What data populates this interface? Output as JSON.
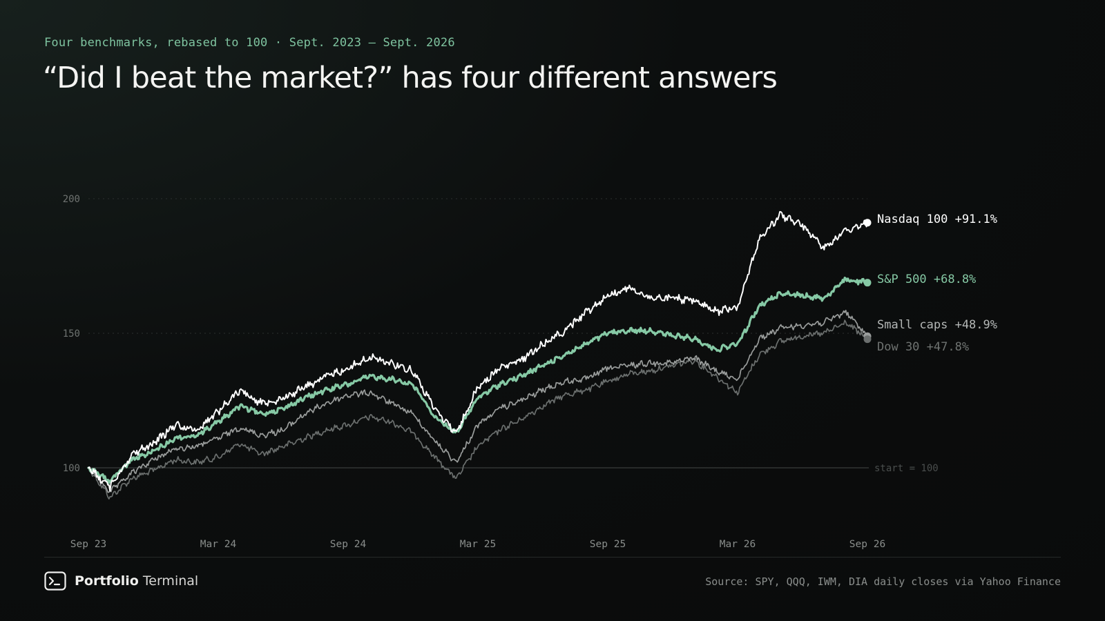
{
  "header": {
    "kicker": "Four benchmarks, rebased to 100 · Sept. 2023 – Sept. 2026",
    "title": "“Did I beat the market?” has four different answers"
  },
  "footer": {
    "brand_bold": "Portfolio",
    "brand_light": "Terminal",
    "source": "Source: SPY, QQQ, IWM, DIA daily closes via Yahoo Finance"
  },
  "colors": {
    "nasdaq": "#ffffff",
    "sp500": "#86c9a5",
    "smallcaps": "#9a9d9c",
    "dow": "#6b6f6e",
    "grid": "#2c302f",
    "axis_text": "#8a8e8c"
  },
  "chart_data": {
    "type": "line",
    "title": "“Did I beat the market?” has four different answers",
    "subtitle": "Four benchmarks, rebased to 100 · Sept. 2023 – Sept. 2026",
    "ylim": [
      70,
      230
    ],
    "yticks": [
      100,
      150,
      200
    ],
    "grid": "horizontal dotted at 150 and 200",
    "x_range": [
      "2023-09",
      "2026-09"
    ],
    "x_ticks": [
      {
        "x": "2023-09",
        "label": "Sep 23"
      },
      {
        "x": "2024-03",
        "label": "Mar 24"
      },
      {
        "x": "2024-09",
        "label": "Sep 24"
      },
      {
        "x": "2025-03",
        "label": "Mar 25"
      },
      {
        "x": "2025-09",
        "label": "Sep 25"
      },
      {
        "x": "2026-03",
        "label": "Mar 26"
      },
      {
        "x": "2026-09",
        "label": "Sep 26"
      }
    ],
    "baseline": {
      "y": 100,
      "label": "start = 100"
    },
    "x": [
      "2023-09",
      "2023-10",
      "2023-11",
      "2023-12",
      "2024-01",
      "2024-02",
      "2024-03",
      "2024-04",
      "2024-05",
      "2024-06",
      "2024-07",
      "2024-08",
      "2024-09",
      "2024-10",
      "2024-11",
      "2024-12",
      "2025-01",
      "2025-02",
      "2025-03",
      "2025-04",
      "2025-05",
      "2025-06",
      "2025-07",
      "2025-08",
      "2025-09",
      "2025-10",
      "2025-11",
      "2025-12",
      "2026-01",
      "2026-02",
      "2026-03",
      "2026-04",
      "2026-05",
      "2026-06",
      "2026-07",
      "2026-08",
      "2026-09"
    ],
    "series": [
      {
        "name": "Nasdaq 100",
        "end_label": "Nasdaq 100 +91.1%",
        "color": "#ffffff",
        "width": 2,
        "values": [
          100,
          93,
          105,
          109,
          116,
          114,
          121,
          129,
          124,
          126,
          130,
          134,
          137,
          141,
          139,
          136,
          122,
          113,
          130,
          137,
          140,
          146,
          151,
          158,
          164,
          167,
          163,
          163,
          162,
          158,
          160,
          185,
          194,
          190,
          182,
          188,
          191.1
        ]
      },
      {
        "name": "S&P 500",
        "end_label": "S&P 500 +68.8%",
        "color": "#86c9a5",
        "width": 3.2,
        "values": [
          100,
          95,
          103,
          106,
          111,
          112,
          117,
          123,
          120,
          122,
          126,
          129,
          131,
          134,
          133,
          131,
          119,
          113,
          126,
          131,
          134,
          138,
          142,
          146,
          150,
          151,
          151,
          149,
          148,
          144,
          146,
          160,
          165,
          164,
          163,
          170,
          168.8
        ]
      },
      {
        "name": "Small caps",
        "end_label": "Small caps +48.9%",
        "color": "#9a9d9c",
        "width": 1.7,
        "values": [
          100,
          91,
          98,
          103,
          107,
          108,
          111,
          115,
          112,
          114,
          120,
          124,
          127,
          128,
          124,
          120,
          110,
          102,
          116,
          122,
          125,
          129,
          132,
          133,
          137,
          138,
          139,
          139,
          141,
          136,
          133,
          148,
          152,
          153,
          154,
          158,
          148.9
        ]
      },
      {
        "name": "Dow 30",
        "end_label": "Dow 30 +47.8%",
        "color": "#6b6f6e",
        "width": 1.7,
        "values": [
          100,
          89,
          96,
          99,
          103,
          102,
          104,
          109,
          105,
          108,
          111,
          114,
          116,
          119,
          117,
          113,
          104,
          96,
          108,
          114,
          118,
          123,
          127,
          129,
          132,
          135,
          136,
          138,
          140,
          134,
          128,
          142,
          147,
          149,
          150,
          154,
          147.8
        ]
      }
    ]
  }
}
